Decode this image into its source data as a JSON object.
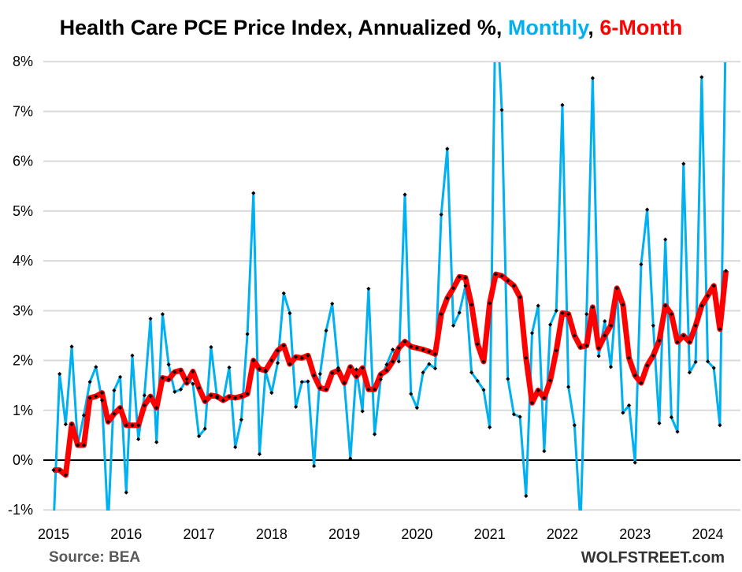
{
  "chart_data": {
    "type": "line",
    "title_parts": {
      "prefix": "Health Care PCE Price Index, Annualized %, ",
      "monthly": "Monthly",
      "comma": ", ",
      "six_month": "6-Month"
    },
    "xlabel": "",
    "ylabel": "",
    "ylim": [
      -1,
      8
    ],
    "y_ticks": [
      "-1%",
      "0%",
      "1%",
      "2%",
      "3%",
      "4%",
      "5%",
      "6%",
      "7%",
      "8%"
    ],
    "y_tick_values": [
      -1,
      0,
      1,
      2,
      3,
      4,
      5,
      6,
      7,
      8
    ],
    "x_ticks": [
      "2015",
      "2016",
      "2017",
      "2018",
      "2019",
      "2020",
      "2021",
      "2022",
      "2023",
      "2024"
    ],
    "x_start": "2015-01",
    "x_end": "2024-04",
    "grid": true,
    "colors": {
      "monthly": "#00b0f0",
      "six_month": "#ff0000",
      "markers": "#000000",
      "grid": "#d9d9d9"
    },
    "series": [
      {
        "name": "Monthly",
        "key": "monthly",
        "values": [
          -1.3,
          1.73,
          0.72,
          2.28,
          0.3,
          0.9,
          1.57,
          1.87,
          1.2,
          -1.3,
          1.4,
          1.67,
          -0.65,
          2.1,
          0.42,
          1.3,
          2.84,
          0.36,
          2.93,
          1.92,
          1.37,
          1.42,
          1.63,
          1.53,
          0.48,
          0.63,
          2.27,
          1.25,
          1.2,
          1.86,
          0.26,
          0.81,
          2.53,
          5.36,
          0.12,
          1.78,
          1.35,
          1.95,
          3.35,
          2.95,
          1.07,
          1.57,
          1.58,
          -0.12,
          1.73,
          2.6,
          3.14,
          1.85,
          1.55,
          0.03,
          1.82,
          0.98,
          3.44,
          0.52,
          1.62,
          1.92,
          2.22,
          1.98,
          5.33,
          1.33,
          1.05,
          1.76,
          1.93,
          1.84,
          4.93,
          6.25,
          2.7,
          2.96,
          3.5,
          1.76,
          1.59,
          1.41,
          0.66,
          9.5,
          7.03,
          1.63,
          0.92,
          0.87,
          -0.72,
          2.55,
          3.1,
          0.18,
          2.72,
          3.0,
          7.13,
          1.47,
          0.7,
          -1.3,
          2.93,
          7.67,
          2.09,
          2.79,
          1.87,
          3.45,
          0.95,
          1.1,
          -0.05,
          3.93,
          5.03,
          2.7,
          0.74,
          4.43,
          0.86,
          0.57,
          5.95,
          1.76,
          1.97,
          7.69,
          1.98,
          1.85,
          0.7,
          9.0
        ]
      },
      {
        "name": "6-Month",
        "key": "six_month",
        "values": [
          -0.2,
          -0.2,
          -0.3,
          0.72,
          0.3,
          0.3,
          1.25,
          1.28,
          1.35,
          0.77,
          0.93,
          1.05,
          0.7,
          0.7,
          0.7,
          1.1,
          1.28,
          1.05,
          1.65,
          1.62,
          1.77,
          1.8,
          1.55,
          1.78,
          1.45,
          1.18,
          1.3,
          1.28,
          1.2,
          1.27,
          1.25,
          1.28,
          1.33,
          2.0,
          1.83,
          1.8,
          2.0,
          2.2,
          2.3,
          1.93,
          2.07,
          2.05,
          2.1,
          1.7,
          1.45,
          1.42,
          1.75,
          1.8,
          1.55,
          1.87,
          1.68,
          1.85,
          1.42,
          1.42,
          1.72,
          1.8,
          1.98,
          2.25,
          2.38,
          2.28,
          2.25,
          2.22,
          2.18,
          2.13,
          2.93,
          3.25,
          3.45,
          3.68,
          3.66,
          3.12,
          2.33,
          1.98,
          3.15,
          3.73,
          3.7,
          3.6,
          3.5,
          3.27,
          2.05,
          1.15,
          1.4,
          1.25,
          1.6,
          2.2,
          2.95,
          2.93,
          2.5,
          2.27,
          2.3,
          3.07,
          2.25,
          2.5,
          2.7,
          3.45,
          3.12,
          2.05,
          1.7,
          1.55,
          1.9,
          2.1,
          2.4,
          3.1,
          2.93,
          2.37,
          2.5,
          2.37,
          2.7,
          3.1,
          3.3,
          3.5,
          2.63,
          3.8
        ]
      }
    ]
  },
  "footer": {
    "source": "Source: BEA",
    "brand": "WOLFSTREET.com"
  }
}
